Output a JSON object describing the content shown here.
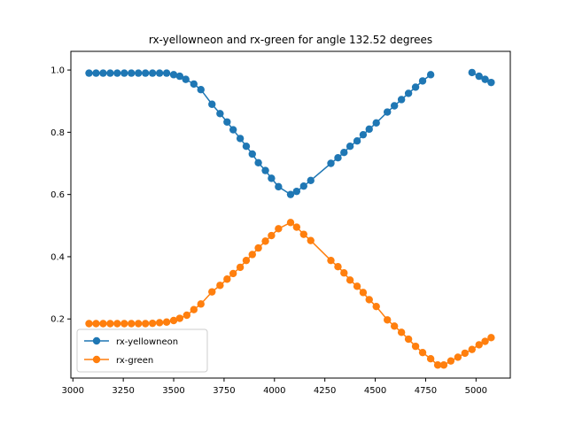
{
  "chart_data": {
    "type": "line",
    "title": "rx-yellowneon and rx-green for angle 132.52 degrees",
    "xlabel": "",
    "ylabel": "",
    "xlim": [
      2990,
      5170
    ],
    "ylim": [
      0.01,
      1.06
    ],
    "xticks": [
      3000,
      3250,
      3500,
      3750,
      4000,
      4250,
      4500,
      4750,
      5000
    ],
    "yticks": [
      0.2,
      0.4,
      0.6,
      0.8,
      1.0
    ],
    "xtick_labels": [
      "3000",
      "3250",
      "3500",
      "3750",
      "4000",
      "4250",
      "4500",
      "4750",
      "5000"
    ],
    "ytick_labels": [
      "0.2",
      "0.4",
      "0.6",
      "0.8",
      "1.0"
    ],
    "grid": false,
    "legend_position": "lower-left",
    "series": [
      {
        "name": "rx-yellowneon",
        "color": "#1f77b4",
        "marker": "circle",
        "segments": [
          [
            [
              3080,
              0.99
            ],
            [
              3115,
              0.99
            ],
            [
              3150,
              0.99
            ],
            [
              3185,
              0.99
            ],
            [
              3220,
              0.99
            ],
            [
              3255,
              0.99
            ],
            [
              3290,
              0.99
            ],
            [
              3325,
              0.99
            ],
            [
              3360,
              0.99
            ],
            [
              3395,
              0.99
            ],
            [
              3430,
              0.99
            ],
            [
              3465,
              0.99
            ],
            [
              3500,
              0.985
            ],
            [
              3530,
              0.98
            ],
            [
              3560,
              0.97
            ],
            [
              3600,
              0.955
            ],
            [
              3635,
              0.937
            ],
            [
              3690,
              0.89
            ],
            [
              3730,
              0.86
            ],
            [
              3765,
              0.833
            ],
            [
              3795,
              0.808
            ],
            [
              3830,
              0.78
            ],
            [
              3860,
              0.755
            ],
            [
              3890,
              0.73
            ],
            [
              3920,
              0.702
            ],
            [
              3955,
              0.677
            ],
            [
              3985,
              0.652
            ],
            [
              4020,
              0.625
            ],
            [
              4080,
              0.6
            ],
            [
              4110,
              0.61
            ],
            [
              4145,
              0.627
            ],
            [
              4180,
              0.645
            ],
            [
              4280,
              0.7
            ],
            [
              4315,
              0.718
            ],
            [
              4345,
              0.735
            ],
            [
              4375,
              0.755
            ],
            [
              4410,
              0.772
            ],
            [
              4440,
              0.792
            ],
            [
              4470,
              0.81
            ],
            [
              4505,
              0.83
            ],
            [
              4560,
              0.865
            ],
            [
              4595,
              0.885
            ],
            [
              4630,
              0.905
            ],
            [
              4665,
              0.925
            ],
            [
              4700,
              0.945
            ],
            [
              4735,
              0.965
            ],
            [
              4775,
              0.985
            ]
          ],
          [
            [
              4980,
              0.992
            ],
            [
              5015,
              0.98
            ],
            [
              5045,
              0.97
            ],
            [
              5075,
              0.96
            ]
          ]
        ]
      },
      {
        "name": "rx-green",
        "color": "#ff7f0e",
        "marker": "circle",
        "segments": [
          [
            [
              3080,
              0.185
            ],
            [
              3115,
              0.185
            ],
            [
              3150,
              0.185
            ],
            [
              3185,
              0.185
            ],
            [
              3220,
              0.185
            ],
            [
              3255,
              0.185
            ],
            [
              3290,
              0.185
            ],
            [
              3325,
              0.185
            ],
            [
              3360,
              0.185
            ],
            [
              3395,
              0.186
            ],
            [
              3430,
              0.188
            ],
            [
              3465,
              0.19
            ],
            [
              3500,
              0.195
            ],
            [
              3530,
              0.202
            ],
            [
              3565,
              0.212
            ],
            [
              3600,
              0.23
            ],
            [
              3635,
              0.248
            ],
            [
              3690,
              0.287
            ],
            [
              3730,
              0.308
            ],
            [
              3765,
              0.328
            ],
            [
              3795,
              0.346
            ],
            [
              3830,
              0.366
            ],
            [
              3860,
              0.388
            ],
            [
              3890,
              0.407
            ],
            [
              3920,
              0.428
            ],
            [
              3955,
              0.45
            ],
            [
              3985,
              0.468
            ],
            [
              4020,
              0.49
            ],
            [
              4080,
              0.51
            ],
            [
              4110,
              0.495
            ],
            [
              4145,
              0.472
            ],
            [
              4180,
              0.452
            ],
            [
              4280,
              0.388
            ],
            [
              4315,
              0.368
            ],
            [
              4345,
              0.348
            ],
            [
              4375,
              0.325
            ],
            [
              4410,
              0.305
            ],
            [
              4440,
              0.285
            ],
            [
              4470,
              0.262
            ],
            [
              4505,
              0.24
            ],
            [
              4560,
              0.197
            ],
            [
              4595,
              0.177
            ],
            [
              4630,
              0.157
            ],
            [
              4665,
              0.135
            ],
            [
              4700,
              0.112
            ],
            [
              4735,
              0.092
            ],
            [
              4775,
              0.072
            ],
            [
              4810,
              0.052
            ],
            [
              4840,
              0.052
            ],
            [
              4875,
              0.065
            ],
            [
              4910,
              0.077
            ],
            [
              4945,
              0.09
            ],
            [
              4980,
              0.102
            ],
            [
              5015,
              0.117
            ],
            [
              5045,
              0.128
            ],
            [
              5075,
              0.14
            ]
          ]
        ]
      }
    ]
  }
}
